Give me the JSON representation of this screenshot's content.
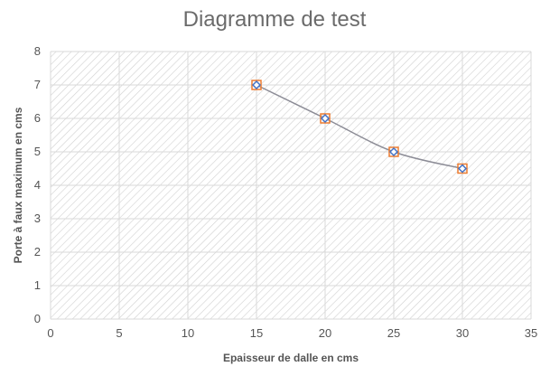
{
  "chart_data": {
    "type": "scatter",
    "title": "Diagramme de test",
    "xlabel": "Epaisseur de dalle en cms",
    "ylabel": "Porte à faux maximum en cms",
    "xlim": [
      0,
      35
    ],
    "ylim": [
      0,
      8
    ],
    "xticks": [
      0,
      5,
      10,
      15,
      20,
      25,
      30,
      35
    ],
    "yticks": [
      0,
      1,
      2,
      3,
      4,
      5,
      6,
      7,
      8
    ],
    "grid": true,
    "legend": "none",
    "smooth_line": true,
    "series": [
      {
        "x": [
          15,
          20,
          25,
          30
        ],
        "y": [
          7,
          6,
          5,
          4.5
        ]
      }
    ],
    "colors": {
      "line": "#8c8c96",
      "marker_outer": "#ed7d31",
      "marker_inner": "#4472c4",
      "grid": "#d9d9d9",
      "hatch": "#d0d0d0"
    }
  }
}
